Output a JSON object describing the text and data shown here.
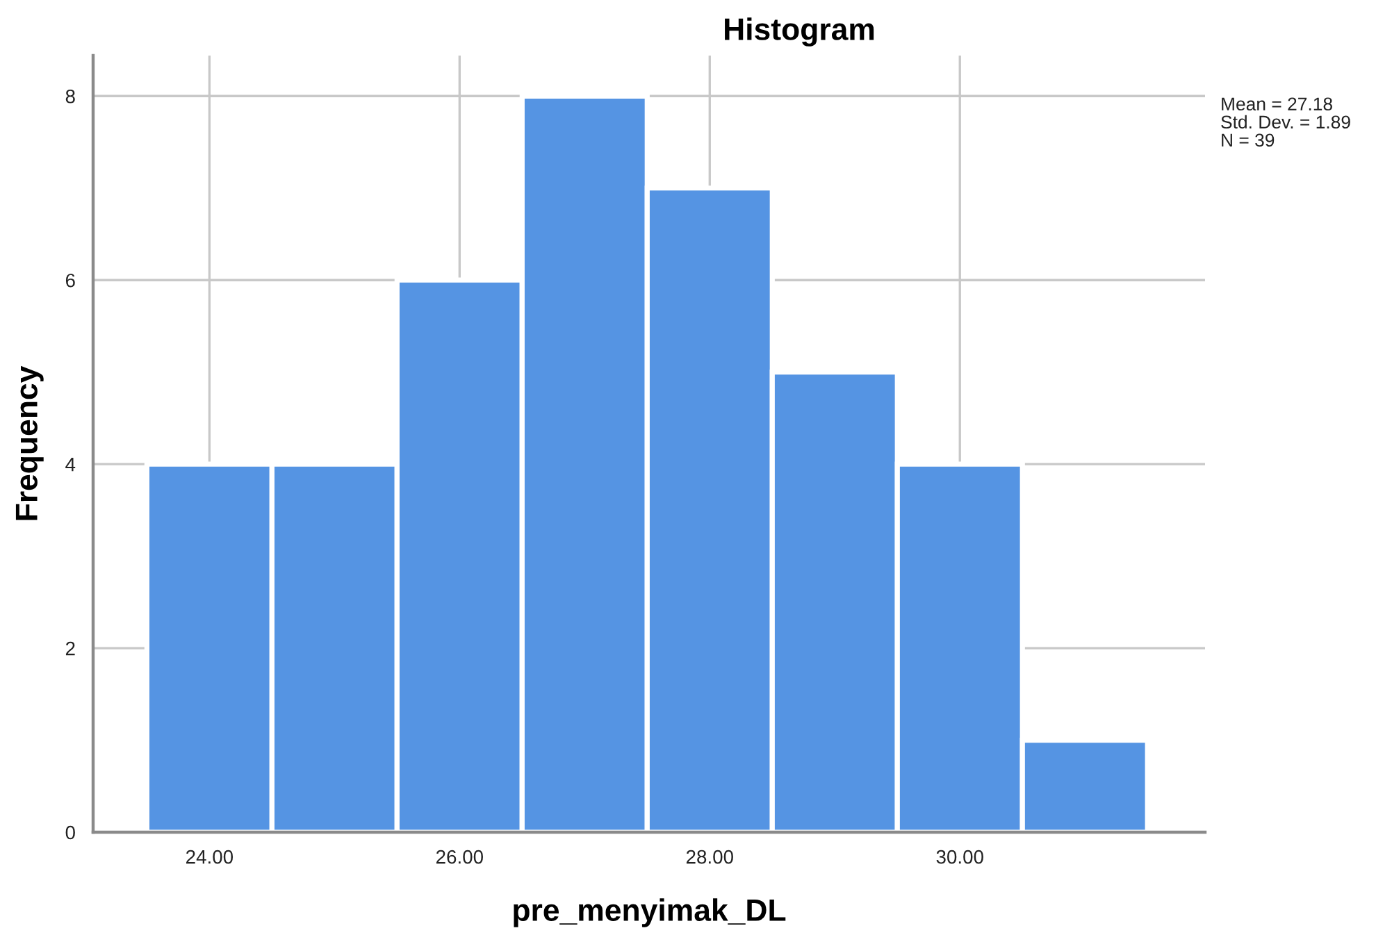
{
  "chart_data": {
    "type": "histogram",
    "title": "Histogram",
    "xlabel": "pre_menyimak_DL",
    "ylabel": "Frequency",
    "bins": [
      23.5,
      24.5,
      25.5,
      26.5,
      27.5,
      28.5,
      29.5,
      30.5,
      31.5
    ],
    "values": [
      4,
      4,
      6,
      8,
      7,
      5,
      4,
      1
    ],
    "color": "#5594e3",
    "xlim": [
      23.07,
      31.96
    ],
    "xticks": [
      {
        "value": 24,
        "label": "24.00"
      },
      {
        "value": 26,
        "label": "26.00"
      },
      {
        "value": 28,
        "label": "28.00"
      },
      {
        "value": 30,
        "label": "30.00"
      }
    ],
    "ylim": [
      0,
      8.44
    ],
    "yticks": [
      0,
      2,
      4,
      6,
      8
    ],
    "grid": true,
    "annotations": [
      "Mean = 27.18",
      "Std. Dev. = 1.89",
      "N = 39"
    ]
  }
}
